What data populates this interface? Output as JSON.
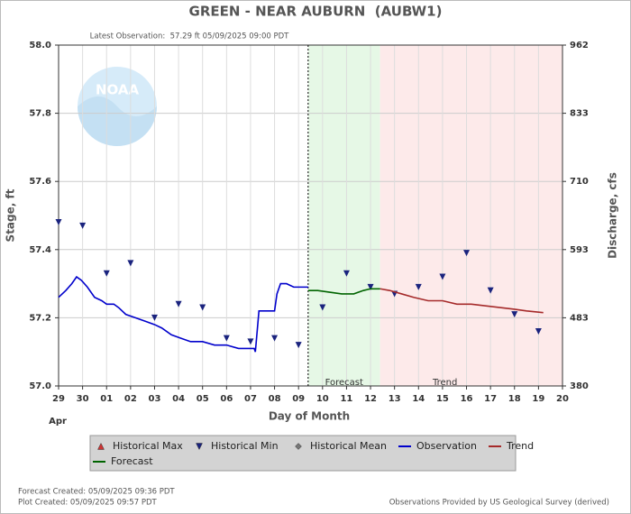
{
  "chart_data": {
    "type": "hydrograph",
    "title": "GREEN - NEAR AUBURN  (AUBW1)",
    "subtitle": "Latest Observation:  57.29 ft 05/09/2025 09:00 PDT",
    "logo_text": "NOAA",
    "x_label": "Day of Month",
    "x_sublabel": "Apr",
    "y_label": "Stage, ft",
    "y2_label": "Discharge, cfs",
    "annotations": [
      "Forecast",
      "Trend"
    ],
    "grid": true,
    "xlim": [
      0,
      21
    ],
    "xticks": [
      {
        "value": 0,
        "label": "29"
      },
      {
        "value": 1,
        "label": "30"
      },
      {
        "value": 2,
        "label": "01"
      },
      {
        "value": 3,
        "label": "02"
      },
      {
        "value": 4,
        "label": "03"
      },
      {
        "value": 5,
        "label": "04"
      },
      {
        "value": 6,
        "label": "05"
      },
      {
        "value": 7,
        "label": "06"
      },
      {
        "value": 8,
        "label": "07"
      },
      {
        "value": 9,
        "label": "08"
      },
      {
        "value": 10,
        "label": "09"
      },
      {
        "value": 11,
        "label": "10"
      },
      {
        "value": 12,
        "label": "11"
      },
      {
        "value": 13,
        "label": "12"
      },
      {
        "value": 14,
        "label": "13"
      },
      {
        "value": 15,
        "label": "14"
      },
      {
        "value": 16,
        "label": "15"
      },
      {
        "value": 17,
        "label": "16"
      },
      {
        "value": 18,
        "label": "17"
      },
      {
        "value": 19,
        "label": "18"
      },
      {
        "value": 20,
        "label": "19"
      },
      {
        "value": 21,
        "label": "20"
      }
    ],
    "ylim": [
      57.0,
      58.0
    ],
    "yticks": [
      {
        "value": 57.0,
        "label": "57.0"
      },
      57.2,
      57.4,
      57.6,
      57.8,
      {
        "value": 58.0,
        "label": "58.0"
      }
    ],
    "y2lim": [
      380,
      962
    ],
    "y2ticks": [
      380,
      483,
      593,
      710,
      833,
      962
    ],
    "series": [
      {
        "name": "Historical Max",
        "color": "#cc3333",
        "marker": "triangle-up",
        "x": [],
        "values": []
      },
      {
        "name": "Historical Min",
        "color": "#1a237e",
        "marker": "triangle-down",
        "x": [
          0,
          1,
          2,
          3,
          4,
          5,
          6,
          7,
          8,
          9,
          10,
          11,
          12,
          13,
          14,
          15,
          16,
          17,
          18,
          19,
          20
        ],
        "values": [
          57.48,
          57.47,
          57.33,
          57.36,
          57.2,
          57.24,
          57.23,
          57.14,
          57.13,
          57.14,
          57.12,
          57.23,
          57.33,
          57.29,
          57.27,
          57.29,
          57.32,
          57.39,
          57.28,
          57.21,
          57.16
        ]
      },
      {
        "name": "Historical Mean",
        "color": "#777777",
        "marker": "diamond",
        "x": [],
        "values": []
      },
      {
        "name": "Observation",
        "color": "#0000cc",
        "marker": "line",
        "x": [
          0,
          0.3,
          0.55,
          0.75,
          0.95,
          1.2,
          1.5,
          1.8,
          2.0,
          2.3,
          2.5,
          2.8,
          3.2,
          3.6,
          4.0,
          4.3,
          4.7,
          5.1,
          5.5,
          6.0,
          6.5,
          7.0,
          7.5,
          8.0,
          8.15,
          8.2,
          8.35,
          8.6,
          9.0,
          9.1,
          9.25,
          9.5,
          9.8,
          10.1,
          10.4
        ],
        "values": [
          57.26,
          57.28,
          57.3,
          57.32,
          57.31,
          57.29,
          57.26,
          57.25,
          57.24,
          57.24,
          57.23,
          57.21,
          57.2,
          57.19,
          57.18,
          57.17,
          57.15,
          57.14,
          57.13,
          57.13,
          57.12,
          57.12,
          57.11,
          57.11,
          57.11,
          57.1,
          57.22,
          57.22,
          57.22,
          57.27,
          57.3,
          57.3,
          57.29,
          57.29,
          57.29
        ]
      },
      {
        "name": "Trend",
        "color": "#a52a2a",
        "marker": "line",
        "x": [
          13.4,
          13.8,
          14.3,
          14.8,
          15.4,
          16.0,
          16.6,
          17.2,
          17.8,
          18.4,
          19.0,
          19.5,
          20.2
        ],
        "values": [
          57.285,
          57.28,
          57.27,
          57.26,
          57.25,
          57.25,
          57.24,
          57.24,
          57.235,
          57.23,
          57.225,
          57.22,
          57.215
        ]
      },
      {
        "name": "Forecast",
        "color": "#006400",
        "marker": "line",
        "x": [
          10.4,
          10.8,
          11.3,
          11.8,
          12.3,
          12.7,
          13.0,
          13.4
        ],
        "values": [
          57.28,
          57.28,
          57.275,
          57.27,
          57.27,
          57.28,
          57.285,
          57.285
        ]
      }
    ],
    "footer_left": [
      "Forecast Created: 05/09/2025 09:36 PDT",
      "Plot Created: 05/09/2025 09:57 PDT"
    ],
    "footer_right": "Observations Provided by US Geological Survey (derived)"
  }
}
